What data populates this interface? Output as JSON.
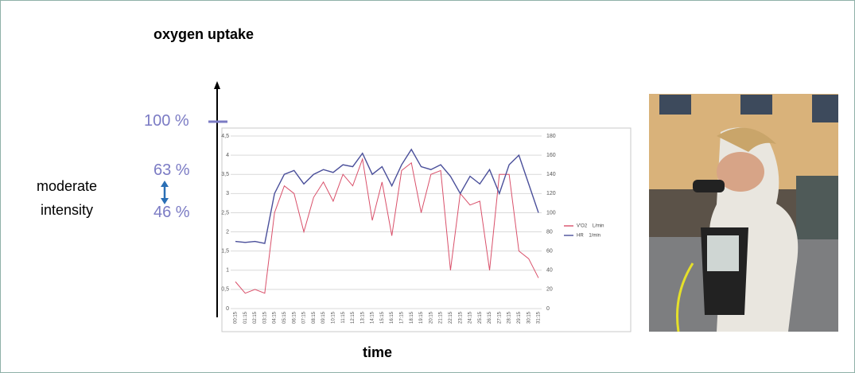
{
  "slide": {
    "title": "oxygen uptake",
    "x_label": "time",
    "zone_label": "moderate intensity",
    "levels": [
      "100 %",
      "63 %",
      "46 %"
    ]
  },
  "chart_data": {
    "type": "line",
    "categories": [
      "00:15",
      "01:15",
      "02:15",
      "03:15",
      "04:15",
      "05:15",
      "06:15",
      "07:15",
      "08:15",
      "09:15",
      "10:15",
      "11:15",
      "12:15",
      "13:15",
      "14:15",
      "15:15",
      "16:15",
      "17:15",
      "18:15",
      "19:15",
      "20:15",
      "21:15",
      "22:15",
      "23:15",
      "24:15",
      "25:15",
      "26:15",
      "27:15",
      "28:15",
      "29:15",
      "30:15",
      "31:15"
    ],
    "series": [
      {
        "name": "V'O2    L/min",
        "color": "#d9506a",
        "values": [
          0.7,
          0.4,
          0.5,
          0.4,
          2.5,
          3.2,
          3.0,
          2.0,
          2.9,
          3.3,
          2.8,
          3.5,
          3.2,
          3.9,
          2.3,
          3.3,
          1.9,
          3.6,
          3.8,
          2.5,
          3.5,
          3.6,
          1.0,
          3.0,
          2.7,
          2.8,
          1.0,
          3.5,
          3.5,
          1.5,
          1.3,
          0.8
        ]
      },
      {
        "name": "HR    1/min",
        "color": "#4a4f9a",
        "axis": "y2",
        "values": [
          70,
          69,
          70,
          68,
          120,
          140,
          144,
          130,
          140,
          145,
          142,
          150,
          148,
          162,
          140,
          148,
          128,
          150,
          166,
          148,
          145,
          150,
          138,
          120,
          138,
          130,
          145,
          120,
          150,
          160,
          130,
          100
        ]
      }
    ],
    "ylim": [
      0,
      4.5
    ],
    "yticks": [
      0,
      {
        "value": 0.5,
        "label": "0,5"
      },
      1,
      {
        "value": 1.5,
        "label": "1,5"
      },
      2,
      {
        "value": 2.5,
        "label": "2,5"
      },
      3,
      {
        "value": 3.5,
        "label": "3,5"
      },
      4,
      {
        "value": 4.5,
        "label": "4,5"
      }
    ],
    "y2lim": [
      0,
      180
    ],
    "y2ticks": [
      0,
      20,
      40,
      60,
      80,
      100,
      120,
      140,
      160,
      180
    ],
    "grid": true
  }
}
